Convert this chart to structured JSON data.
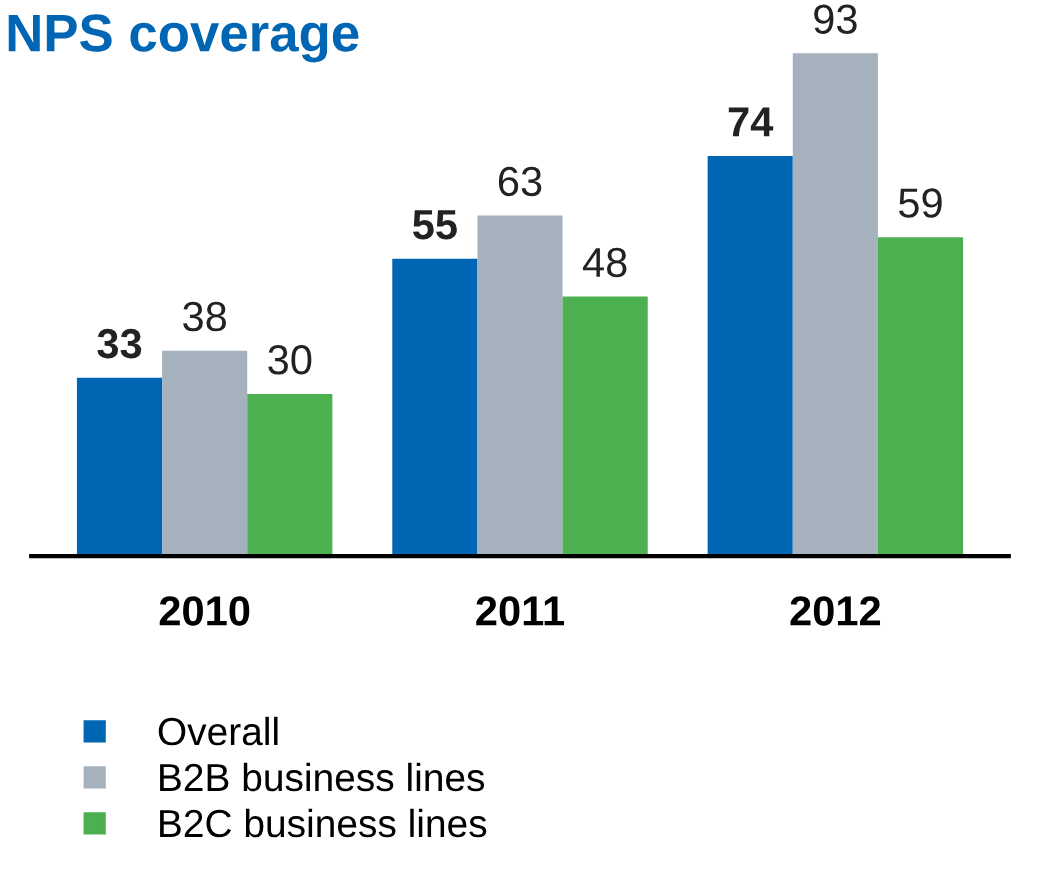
{
  "chart_data": {
    "type": "bar",
    "title": "NPS coverage",
    "categories": [
      "2010",
      "2011",
      "2012"
    ],
    "series": [
      {
        "name": "Overall",
        "color": "#0066b3",
        "values": [
          33,
          55,
          74
        ]
      },
      {
        "name": "B2B business lines",
        "color": "#a5b2bd",
        "values": [
          38,
          63,
          93
        ]
      },
      {
        "name": "B2C business lines",
        "color": "#4caf50",
        "values": [
          30,
          48,
          59
        ]
      }
    ],
    "data_labels": true,
    "grid": false,
    "legend": "bottom"
  }
}
